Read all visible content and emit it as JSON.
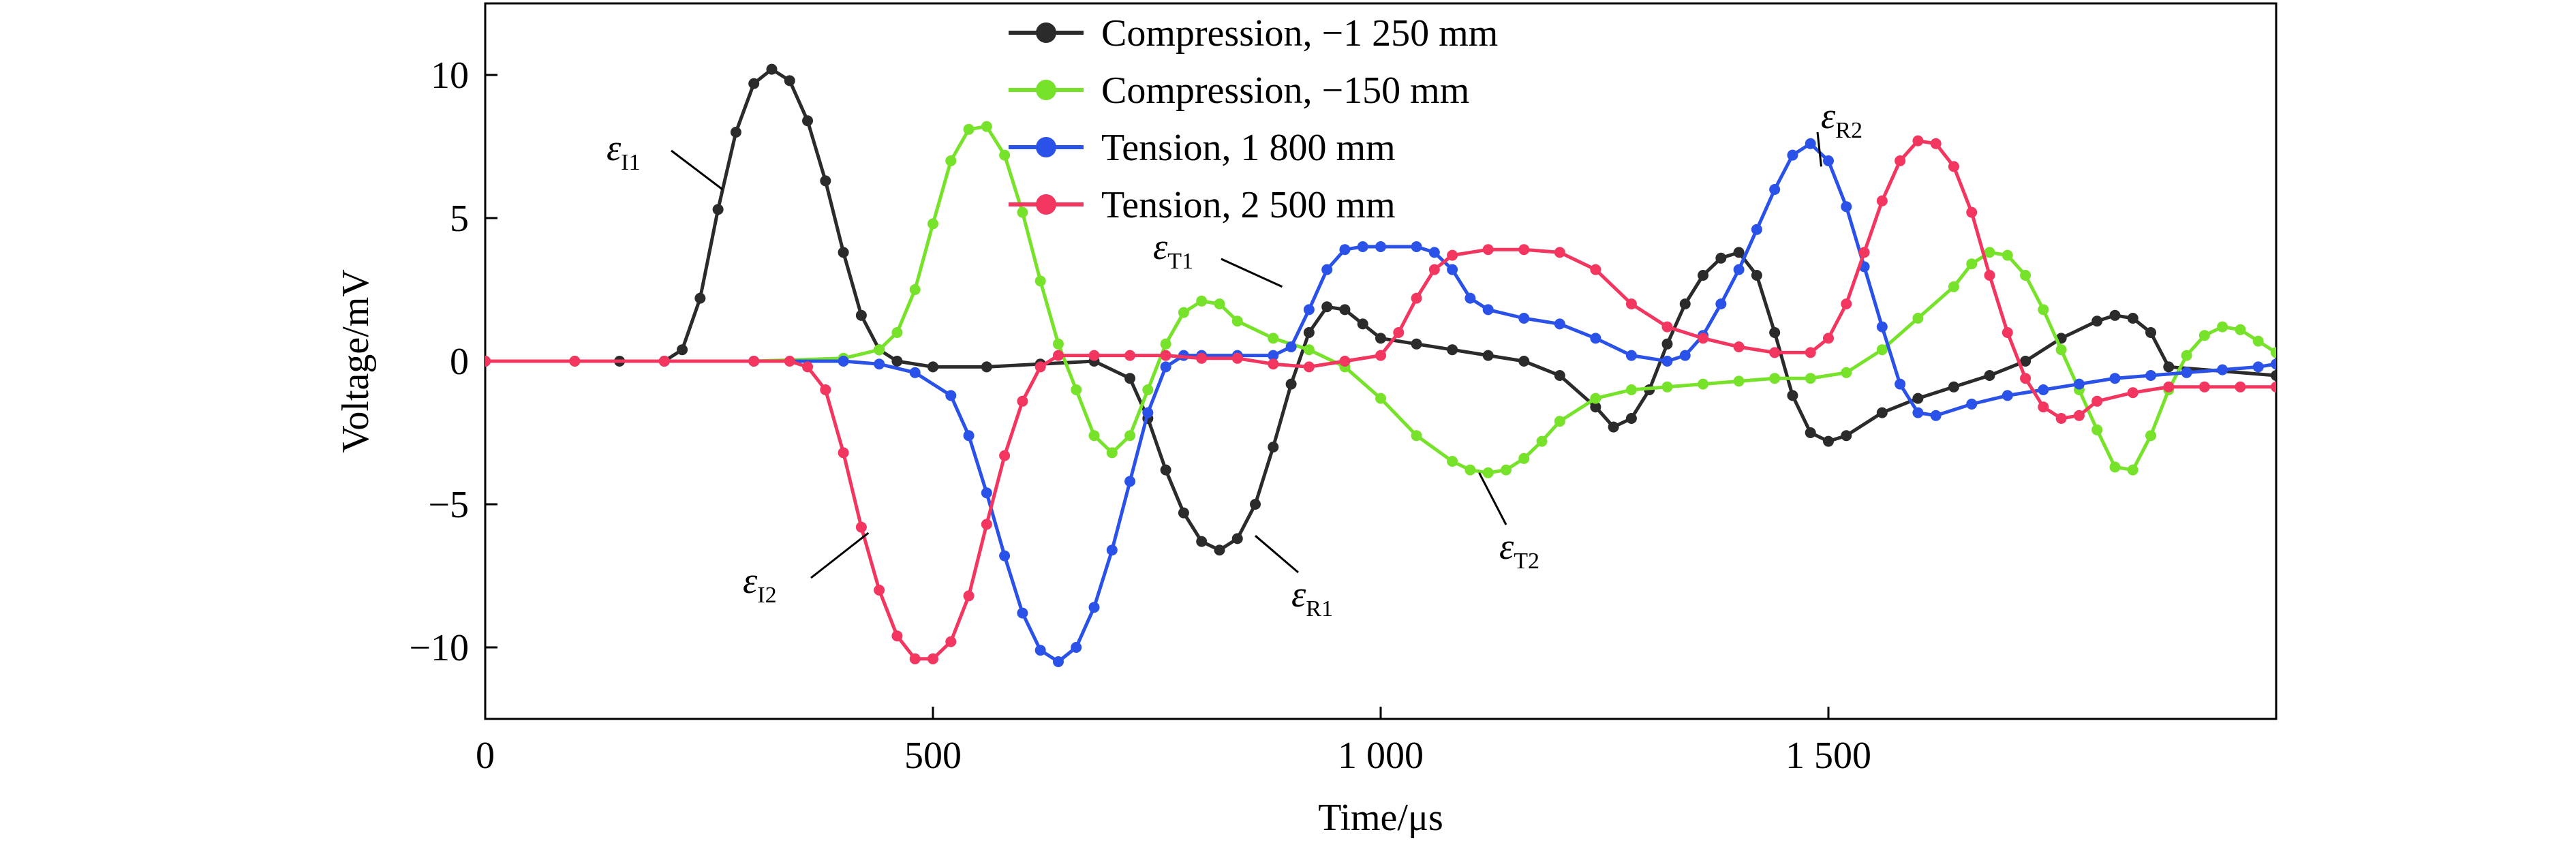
{
  "chart_data": {
    "type": "line",
    "xlabel": "Time/μs",
    "ylabel": "Voltage/mV",
    "xlim": [
      0,
      2000
    ],
    "ylim": [
      -12.5,
      12.5
    ],
    "xticks": [
      0,
      500,
      1000,
      1500
    ],
    "xtick_labels": [
      "0",
      "500",
      "1 000",
      "1 500"
    ],
    "yticks": [
      10,
      5,
      0,
      -5,
      -10
    ],
    "ytick_labels": [
      "10",
      "5",
      "0",
      "−5",
      "−10"
    ],
    "grid": false,
    "legend_position": "top-center",
    "series": [
      {
        "name": "Compression, −1 250 mm",
        "color": "#2b2b2b",
        "points": [
          [
            0,
            0
          ],
          [
            150,
            0
          ],
          [
            200,
            0
          ],
          [
            220,
            0.4
          ],
          [
            240,
            2.2
          ],
          [
            260,
            5.3
          ],
          [
            280,
            8
          ],
          [
            300,
            9.7
          ],
          [
            320,
            10.2
          ],
          [
            340,
            9.8
          ],
          [
            360,
            8.4
          ],
          [
            380,
            6.3
          ],
          [
            400,
            3.8
          ],
          [
            420,
            1.6
          ],
          [
            440,
            0.4
          ],
          [
            460,
            0
          ],
          [
            500,
            -0.2
          ],
          [
            560,
            -0.2
          ],
          [
            620,
            -0.1
          ],
          [
            680,
            0
          ],
          [
            720,
            -0.6
          ],
          [
            740,
            -2
          ],
          [
            760,
            -3.8
          ],
          [
            780,
            -5.3
          ],
          [
            800,
            -6.3
          ],
          [
            820,
            -6.6
          ],
          [
            840,
            -6.2
          ],
          [
            860,
            -5
          ],
          [
            880,
            -3
          ],
          [
            900,
            -0.8
          ],
          [
            920,
            1
          ],
          [
            940,
            1.9
          ],
          [
            960,
            1.8
          ],
          [
            980,
            1.3
          ],
          [
            1000,
            0.8
          ],
          [
            1040,
            0.6
          ],
          [
            1080,
            0.4
          ],
          [
            1120,
            0.2
          ],
          [
            1160,
            0
          ],
          [
            1200,
            -0.5
          ],
          [
            1240,
            -1.6
          ],
          [
            1260,
            -2.3
          ],
          [
            1280,
            -2
          ],
          [
            1300,
            -1
          ],
          [
            1320,
            0.6
          ],
          [
            1340,
            2
          ],
          [
            1360,
            3
          ],
          [
            1380,
            3.6
          ],
          [
            1400,
            3.8
          ],
          [
            1420,
            3
          ],
          [
            1440,
            1
          ],
          [
            1460,
            -1.2
          ],
          [
            1480,
            -2.5
          ],
          [
            1500,
            -2.8
          ],
          [
            1520,
            -2.6
          ],
          [
            1560,
            -1.8
          ],
          [
            1600,
            -1.3
          ],
          [
            1640,
            -0.9
          ],
          [
            1680,
            -0.5
          ],
          [
            1720,
            0
          ],
          [
            1760,
            0.8
          ],
          [
            1800,
            1.4
          ],
          [
            1820,
            1.6
          ],
          [
            1840,
            1.5
          ],
          [
            1860,
            1
          ],
          [
            1880,
            -0.2
          ],
          [
            2000,
            -0.5
          ]
        ]
      },
      {
        "name": "Compression, −150 mm",
        "color": "#77e22a",
        "points": [
          [
            0,
            0
          ],
          [
            100,
            0
          ],
          [
            200,
            0
          ],
          [
            300,
            0
          ],
          [
            400,
            0.1
          ],
          [
            440,
            0.4
          ],
          [
            460,
            1
          ],
          [
            480,
            2.5
          ],
          [
            500,
            4.8
          ],
          [
            520,
            7
          ],
          [
            540,
            8.1
          ],
          [
            560,
            8.2
          ],
          [
            580,
            7.2
          ],
          [
            600,
            5.2
          ],
          [
            620,
            2.8
          ],
          [
            640,
            0.6
          ],
          [
            660,
            -1
          ],
          [
            680,
            -2.6
          ],
          [
            700,
            -3.2
          ],
          [
            720,
            -2.6
          ],
          [
            740,
            -1
          ],
          [
            760,
            0.6
          ],
          [
            780,
            1.7
          ],
          [
            800,
            2.1
          ],
          [
            820,
            2
          ],
          [
            840,
            1.4
          ],
          [
            880,
            0.8
          ],
          [
            920,
            0.4
          ],
          [
            960,
            -0.2
          ],
          [
            1000,
            -1.3
          ],
          [
            1040,
            -2.6
          ],
          [
            1080,
            -3.5
          ],
          [
            1100,
            -3.8
          ],
          [
            1120,
            -3.9
          ],
          [
            1140,
            -3.8
          ],
          [
            1160,
            -3.4
          ],
          [
            1180,
            -2.8
          ],
          [
            1200,
            -2.1
          ],
          [
            1240,
            -1.3
          ],
          [
            1280,
            -1
          ],
          [
            1320,
            -0.9
          ],
          [
            1360,
            -0.8
          ],
          [
            1400,
            -0.7
          ],
          [
            1440,
            -0.6
          ],
          [
            1480,
            -0.6
          ],
          [
            1520,
            -0.4
          ],
          [
            1560,
            0.4
          ],
          [
            1600,
            1.5
          ],
          [
            1640,
            2.6
          ],
          [
            1660,
            3.4
          ],
          [
            1680,
            3.8
          ],
          [
            1700,
            3.7
          ],
          [
            1720,
            3
          ],
          [
            1740,
            1.8
          ],
          [
            1760,
            0.4
          ],
          [
            1780,
            -1
          ],
          [
            1800,
            -2.4
          ],
          [
            1820,
            -3.7
          ],
          [
            1840,
            -3.8
          ],
          [
            1860,
            -2.6
          ],
          [
            1880,
            -1
          ],
          [
            1900,
            0.2
          ],
          [
            1920,
            0.9
          ],
          [
            1940,
            1.2
          ],
          [
            1960,
            1.1
          ],
          [
            1980,
            0.7
          ],
          [
            2000,
            0.3
          ]
        ]
      },
      {
        "name": "Tension, 1 800 mm",
        "color": "#2a52e8",
        "points": [
          [
            0,
            0
          ],
          [
            200,
            0
          ],
          [
            300,
            0
          ],
          [
            400,
            0
          ],
          [
            440,
            -0.1
          ],
          [
            480,
            -0.4
          ],
          [
            520,
            -1.2
          ],
          [
            540,
            -2.6
          ],
          [
            560,
            -4.6
          ],
          [
            580,
            -6.8
          ],
          [
            600,
            -8.8
          ],
          [
            620,
            -10.1
          ],
          [
            640,
            -10.5
          ],
          [
            660,
            -10
          ],
          [
            680,
            -8.6
          ],
          [
            700,
            -6.6
          ],
          [
            720,
            -4.2
          ],
          [
            740,
            -1.8
          ],
          [
            760,
            -0.2
          ],
          [
            780,
            0.2
          ],
          [
            800,
            0.2
          ],
          [
            840,
            0.2
          ],
          [
            880,
            0.2
          ],
          [
            900,
            0.5
          ],
          [
            920,
            1.8
          ],
          [
            940,
            3.2
          ],
          [
            960,
            3.9
          ],
          [
            980,
            4
          ],
          [
            1000,
            4
          ],
          [
            1040,
            4
          ],
          [
            1060,
            3.8
          ],
          [
            1080,
            3.2
          ],
          [
            1100,
            2.2
          ],
          [
            1120,
            1.8
          ],
          [
            1160,
            1.5
          ],
          [
            1200,
            1.3
          ],
          [
            1240,
            0.8
          ],
          [
            1280,
            0.2
          ],
          [
            1320,
            0
          ],
          [
            1340,
            0.2
          ],
          [
            1360,
            0.9
          ],
          [
            1380,
            2
          ],
          [
            1400,
            3.2
          ],
          [
            1420,
            4.6
          ],
          [
            1440,
            6
          ],
          [
            1460,
            7.2
          ],
          [
            1480,
            7.6
          ],
          [
            1500,
            7
          ],
          [
            1520,
            5.4
          ],
          [
            1540,
            3.3
          ],
          [
            1560,
            1.2
          ],
          [
            1580,
            -0.8
          ],
          [
            1600,
            -1.8
          ],
          [
            1620,
            -1.9
          ],
          [
            1660,
            -1.5
          ],
          [
            1700,
            -1.2
          ],
          [
            1740,
            -1
          ],
          [
            1780,
            -0.8
          ],
          [
            1820,
            -0.6
          ],
          [
            1860,
            -0.5
          ],
          [
            1900,
            -0.4
          ],
          [
            1940,
            -0.3
          ],
          [
            1980,
            -0.2
          ],
          [
            2000,
            -0.1
          ]
        ]
      },
      {
        "name": "Tension, 2 500 mm",
        "color": "#f2365f",
        "points": [
          [
            0,
            0
          ],
          [
            100,
            0
          ],
          [
            200,
            0
          ],
          [
            300,
            0
          ],
          [
            340,
            0
          ],
          [
            360,
            -0.2
          ],
          [
            380,
            -1
          ],
          [
            400,
            -3.2
          ],
          [
            420,
            -5.8
          ],
          [
            440,
            -8
          ],
          [
            460,
            -9.6
          ],
          [
            480,
            -10.4
          ],
          [
            500,
            -10.4
          ],
          [
            520,
            -9.8
          ],
          [
            540,
            -8.2
          ],
          [
            560,
            -5.7
          ],
          [
            580,
            -3.3
          ],
          [
            600,
            -1.4
          ],
          [
            620,
            -0.2
          ],
          [
            640,
            0.2
          ],
          [
            680,
            0.2
          ],
          [
            720,
            0.2
          ],
          [
            760,
            0.2
          ],
          [
            800,
            0.1
          ],
          [
            840,
            0.1
          ],
          [
            880,
            -0.1
          ],
          [
            920,
            -0.2
          ],
          [
            960,
            0
          ],
          [
            1000,
            0.2
          ],
          [
            1020,
            1
          ],
          [
            1040,
            2.2
          ],
          [
            1060,
            3.2
          ],
          [
            1080,
            3.7
          ],
          [
            1120,
            3.9
          ],
          [
            1160,
            3.9
          ],
          [
            1200,
            3.8
          ],
          [
            1240,
            3.2
          ],
          [
            1280,
            2
          ],
          [
            1320,
            1.2
          ],
          [
            1360,
            0.8
          ],
          [
            1400,
            0.5
          ],
          [
            1440,
            0.3
          ],
          [
            1480,
            0.3
          ],
          [
            1500,
            0.8
          ],
          [
            1520,
            2
          ],
          [
            1540,
            3.8
          ],
          [
            1560,
            5.6
          ],
          [
            1580,
            7
          ],
          [
            1600,
            7.7
          ],
          [
            1620,
            7.6
          ],
          [
            1640,
            6.8
          ],
          [
            1660,
            5.2
          ],
          [
            1680,
            3
          ],
          [
            1700,
            1
          ],
          [
            1720,
            -0.6
          ],
          [
            1740,
            -1.6
          ],
          [
            1760,
            -2
          ],
          [
            1780,
            -1.9
          ],
          [
            1800,
            -1.4
          ],
          [
            1840,
            -1.1
          ],
          [
            1880,
            -0.9
          ],
          [
            1920,
            -0.9
          ],
          [
            1960,
            -0.9
          ],
          [
            2000,
            -0.9
          ]
        ]
      }
    ],
    "annotations": [
      {
        "base": "ε",
        "sub": "I1",
        "target": [
          265,
          6.0
        ]
      },
      {
        "base": "ε",
        "sub": "I2",
        "target": [
          428,
          -6.0
        ]
      },
      {
        "base": "ε",
        "sub": "T1",
        "target": [
          890,
          2.6
        ]
      },
      {
        "base": "ε",
        "sub": "T2",
        "target": [
          1110,
          -3.9
        ]
      },
      {
        "base": "ε",
        "sub": "R1",
        "target": [
          860,
          -6.1
        ]
      },
      {
        "base": "ε",
        "sub": "R2",
        "target": [
          1492,
          6.8
        ]
      }
    ]
  }
}
